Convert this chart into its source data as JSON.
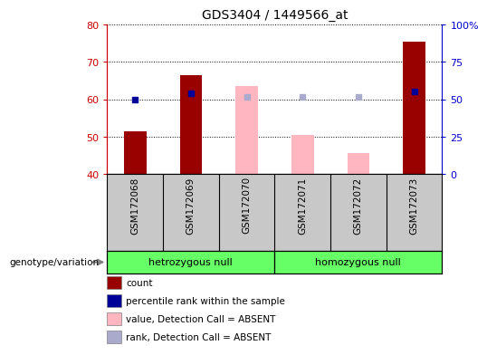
{
  "title": "GDS3404 / 1449566_at",
  "samples": [
    "GSM172068",
    "GSM172069",
    "GSM172070",
    "GSM172071",
    "GSM172072",
    "GSM172073"
  ],
  "groups": [
    {
      "label": "hetrozygous null",
      "indices": [
        0,
        1,
        2
      ]
    },
    {
      "label": "homozygous null",
      "indices": [
        3,
        4,
        5
      ]
    }
  ],
  "count_values": [
    51.5,
    66.5,
    null,
    null,
    null,
    75.5
  ],
  "percentile_rank": [
    60.0,
    61.5,
    null,
    null,
    null,
    62.0
  ],
  "absent_value": [
    null,
    null,
    63.5,
    50.5,
    45.5,
    null
  ],
  "absent_rank": [
    null,
    null,
    60.5,
    60.5,
    60.5,
    null
  ],
  "bar_bottom": 40,
  "ylim_left": [
    40,
    80
  ],
  "ylim_right": [
    0,
    100
  ],
  "yticks_left": [
    40,
    50,
    60,
    70,
    80
  ],
  "ytick_labels_left": [
    "40",
    "50",
    "60",
    "70",
    "80"
  ],
  "yticks_right_vals": [
    0,
    25,
    50,
    75,
    100
  ],
  "ytick_labels_right": [
    "0",
    "25",
    "50",
    "75",
    "100%"
  ],
  "count_color": "#990000",
  "rank_color": "#000099",
  "absent_value_color": "#FFB6C1",
  "absent_rank_color": "#AAAACC",
  "bar_width": 0.4,
  "legend_items": [
    {
      "label": "count",
      "color": "#990000"
    },
    {
      "label": "percentile rank within the sample",
      "color": "#000099"
    },
    {
      "label": "value, Detection Call = ABSENT",
      "color": "#FFB6C1"
    },
    {
      "label": "rank, Detection Call = ABSENT",
      "color": "#AAAACC"
    }
  ],
  "sample_bg_color": "#C8C8C8",
  "group_bg_color": "#66FF66",
  "left_axis_color": "#CC0000",
  "right_axis_color": "#0000CC",
  "genotype_label": "genotype/variation"
}
